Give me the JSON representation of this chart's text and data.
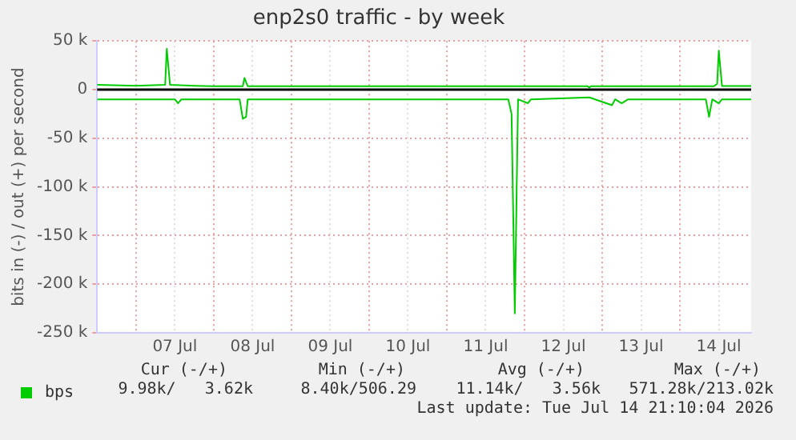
{
  "chart_data": {
    "type": "line",
    "title": "enp2s0 traffic - by week",
    "ylabel": "bits in (-) / out (+) per second",
    "xlim": [
      "2026-07-06T12:00",
      "2026-07-14T22:00"
    ],
    "xticks": [
      {
        "value": "2026-07-07T00:00",
        "label": null
      },
      {
        "value": "2026-07-07T12:00",
        "label": "07 Jul"
      },
      {
        "value": "2026-07-08T00:00",
        "label": null
      },
      {
        "value": "2026-07-08T12:00",
        "label": "08 Jul"
      },
      {
        "value": "2026-07-09T00:00",
        "label": null
      },
      {
        "value": "2026-07-09T12:00",
        "label": "09 Jul"
      },
      {
        "value": "2026-07-10T00:00",
        "label": null
      },
      {
        "value": "2026-07-10T12:00",
        "label": "10 Jul"
      },
      {
        "value": "2026-07-11T00:00",
        "label": null
      },
      {
        "value": "2026-07-11T12:00",
        "label": "11 Jul"
      },
      {
        "value": "2026-07-12T00:00",
        "label": null
      },
      {
        "value": "2026-07-12T12:00",
        "label": "12 Jul"
      },
      {
        "value": "2026-07-13T00:00",
        "label": null
      },
      {
        "value": "2026-07-13T12:00",
        "label": "13 Jul"
      },
      {
        "value": "2026-07-14T00:00",
        "label": null
      },
      {
        "value": "2026-07-14T12:00",
        "label": "14 Jul"
      }
    ],
    "ylim": [
      -250000,
      50000
    ],
    "yticks": [
      {
        "value": 50000,
        "label": "50 k"
      },
      {
        "value": 0,
        "label": "0"
      },
      {
        "value": -50000,
        "label": "-50 k"
      },
      {
        "value": -100000,
        "label": "-100 k"
      },
      {
        "value": -150000,
        "label": "-150 k"
      },
      {
        "value": -200000,
        "label": "-200 k"
      },
      {
        "value": -250000,
        "label": "-250 k"
      }
    ],
    "grid": true,
    "legend": "bottom left",
    "marker": "none",
    "line_style": "solid",
    "ref_lines": [
      {
        "axis": "y",
        "value": 0,
        "color": "#000000"
      }
    ],
    "series": [
      {
        "name": "bps",
        "color": "#00cc00",
        "x": [
          "2026-07-06T12:00",
          "2026-07-07T00:00",
          "2026-07-07T09:00",
          "2026-07-07T09:30",
          "2026-07-07T10:30",
          "2026-07-07T18:00",
          "2026-07-08T00:00",
          "2026-07-08T09:00",
          "2026-07-08T09:30",
          "2026-07-08T10:30",
          "2026-07-10T12:00",
          "2026-07-12T19:30",
          "2026-07-12T20:00",
          "2026-07-12T20:30",
          "2026-07-14T10:30",
          "2026-07-14T11:30",
          "2026-07-14T12:00",
          "2026-07-14T13:00",
          "2026-07-14T22:00"
        ],
        "values": [
          5000,
          4000,
          5000,
          42000,
          5000,
          4000,
          3500,
          3500,
          12000,
          3500,
          3500,
          3500,
          2000,
          3500,
          3500,
          6000,
          40000,
          3600,
          3600
        ]
      },
      {
        "color": "#00cc00",
        "x": [
          "2026-07-06T12:00",
          "2026-07-07T12:00",
          "2026-07-07T13:00",
          "2026-07-07T14:00",
          "2026-07-08T08:00",
          "2026-07-08T09:00",
          "2026-07-08T10:00",
          "2026-07-08T10:30",
          "2026-07-09T12:00",
          "2026-07-11T19:00",
          "2026-07-11T20:00",
          "2026-07-11T21:00",
          "2026-07-11T22:00",
          "2026-07-12T01:00",
          "2026-07-12T02:00",
          "2026-07-12T20:00",
          "2026-07-13T03:00",
          "2026-07-13T04:00",
          "2026-07-13T06:00",
          "2026-07-13T08:00",
          "2026-07-14T08:00",
          "2026-07-14T09:00",
          "2026-07-14T10:00",
          "2026-07-14T12:00",
          "2026-07-14T13:00",
          "2026-07-14T22:00"
        ],
        "values": [
          -10000,
          -10000,
          -14000,
          -10000,
          -10000,
          -30000,
          -28000,
          -10000,
          -10000,
          -10000,
          -25000,
          -230000,
          -10000,
          -14000,
          -10000,
          -8000,
          -16000,
          -10000,
          -14000,
          -10000,
          -10000,
          -28000,
          -10000,
          -14000,
          -10000,
          -10000
        ]
      }
    ],
    "annotations": [
      "Cur (-/+)",
      "Min (-/+)",
      "Avg (-/+)",
      "Max (-/+)",
      "9.98k/   3.62k",
      "8.40k/506.29",
      "11.14k/   3.56k",
      "571.28k/213.02k",
      "Last update: Tue Jul 14 21:10:04 2026"
    ]
  }
}
